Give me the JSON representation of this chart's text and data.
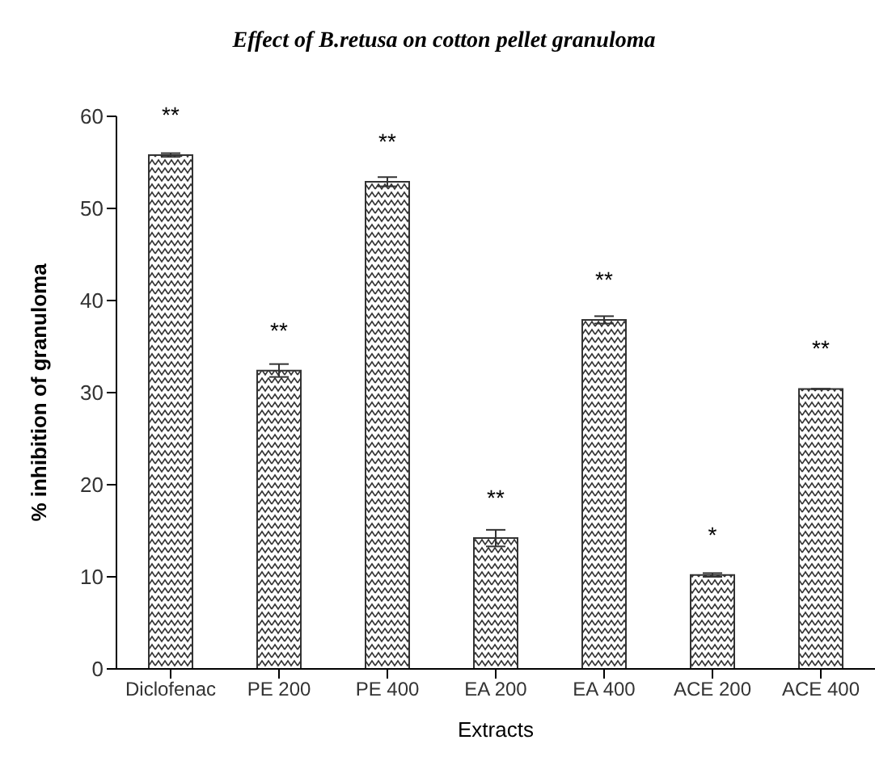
{
  "chart_data": {
    "type": "bar",
    "title": "Effect of B.retusa on cotton pellet granuloma",
    "xlabel": "Extracts",
    "ylabel": "% inhibition of granuloma",
    "categories": [
      "Diclofenac",
      "PE 200",
      "PE 400",
      "EA 200",
      "EA 400",
      "ACE 200",
      "ACE 400"
    ],
    "values": [
      55.8,
      32.4,
      52.9,
      14.2,
      37.9,
      10.2,
      30.4
    ],
    "errors": [
      0.2,
      0.7,
      0.5,
      0.9,
      0.4,
      0.2,
      null
    ],
    "color": "#333333",
    "ylim": [
      0,
      60
    ],
    "yticks": [
      0,
      10,
      20,
      30,
      40,
      50,
      60
    ],
    "grid": false,
    "legend": false,
    "value_labels": [
      "**",
      "**",
      "**",
      "**",
      "**",
      "*",
      "**"
    ]
  }
}
